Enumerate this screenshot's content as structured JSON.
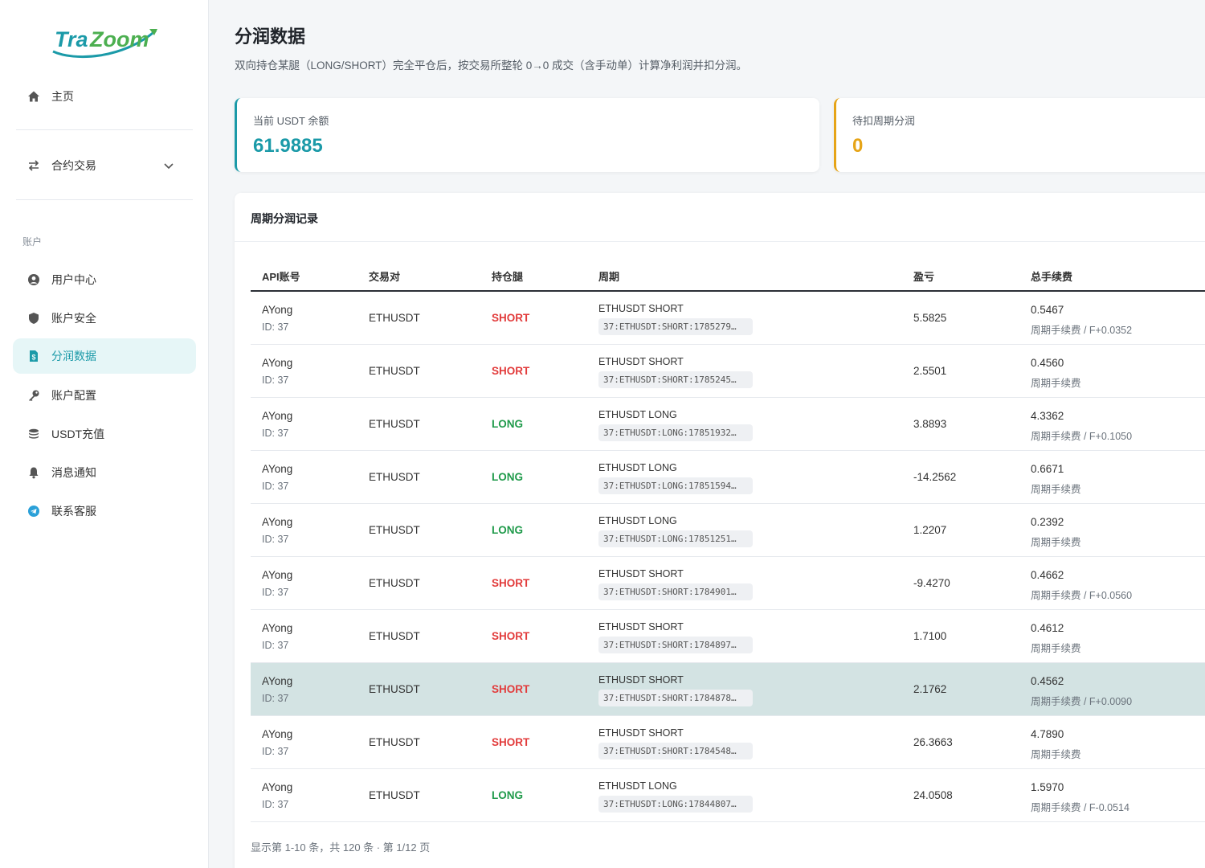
{
  "brand": {
    "logo_text": "TraZoom"
  },
  "sidebar": {
    "home": "主页",
    "contract": "合约交易",
    "section_account": "账户",
    "items": [
      {
        "label": "用户中心",
        "icon": "user-circle-icon"
      },
      {
        "label": "账户安全",
        "icon": "shield-icon"
      },
      {
        "label": "分润数据",
        "icon": "file-dollar-icon"
      },
      {
        "label": "账户配置",
        "icon": "key-icon"
      },
      {
        "label": "USDT充值",
        "icon": "coins-icon"
      },
      {
        "label": "消息通知",
        "icon": "bell-icon"
      },
      {
        "label": "联系客服",
        "icon": "telegram-icon"
      }
    ]
  },
  "page": {
    "title": "分润数据",
    "description": "双向持仓某腿（LONG/SHORT）完全平仓后，按交易所整轮 0→0 成交（含手动单）计算净利润并扣分润。"
  },
  "stats": {
    "balance_label": "当前 USDT 余额",
    "balance_value": "61.9885",
    "pending_label": "待扣周期分润",
    "pending_value": "0"
  },
  "panel": {
    "title": "周期分润记录"
  },
  "table": {
    "headers": {
      "account": "API账号",
      "pair": "交易对",
      "side": "持仓腿",
      "period": "周期",
      "pnl": "盈亏",
      "fee": "总手续费"
    },
    "rows": [
      {
        "name": "AYong",
        "id": "ID: 37",
        "pair": "ETHUSDT",
        "side": "SHORT",
        "period_title": "ETHUSDT SHORT",
        "period_code": "37:ETHUSDT:SHORT:1785279…",
        "pnl": "5.5825",
        "fee": "0.5467",
        "fee_sub": "周期手续费 / F+0.0352"
      },
      {
        "name": "AYong",
        "id": "ID: 37",
        "pair": "ETHUSDT",
        "side": "SHORT",
        "period_title": "ETHUSDT SHORT",
        "period_code": "37:ETHUSDT:SHORT:1785245…",
        "pnl": "2.5501",
        "fee": "0.4560",
        "fee_sub": "周期手续费"
      },
      {
        "name": "AYong",
        "id": "ID: 37",
        "pair": "ETHUSDT",
        "side": "LONG",
        "period_title": "ETHUSDT LONG",
        "period_code": "37:ETHUSDT:LONG:17851932…",
        "pnl": "3.8893",
        "fee": "4.3362",
        "fee_sub": "周期手续费 / F+0.1050"
      },
      {
        "name": "AYong",
        "id": "ID: 37",
        "pair": "ETHUSDT",
        "side": "LONG",
        "period_title": "ETHUSDT LONG",
        "period_code": "37:ETHUSDT:LONG:17851594…",
        "pnl": "-14.2562",
        "fee": "0.6671",
        "fee_sub": "周期手续费"
      },
      {
        "name": "AYong",
        "id": "ID: 37",
        "pair": "ETHUSDT",
        "side": "LONG",
        "period_title": "ETHUSDT LONG",
        "period_code": "37:ETHUSDT:LONG:17851251…",
        "pnl": "1.2207",
        "fee": "0.2392",
        "fee_sub": "周期手续费"
      },
      {
        "name": "AYong",
        "id": "ID: 37",
        "pair": "ETHUSDT",
        "side": "SHORT",
        "period_title": "ETHUSDT SHORT",
        "period_code": "37:ETHUSDT:SHORT:1784901…",
        "pnl": "-9.4270",
        "fee": "0.4662",
        "fee_sub": "周期手续费 / F+0.0560"
      },
      {
        "name": "AYong",
        "id": "ID: 37",
        "pair": "ETHUSDT",
        "side": "SHORT",
        "period_title": "ETHUSDT SHORT",
        "period_code": "37:ETHUSDT:SHORT:1784897…",
        "pnl": "1.7100",
        "fee": "0.4612",
        "fee_sub": "周期手续费"
      },
      {
        "name": "AYong",
        "id": "ID: 37",
        "pair": "ETHUSDT",
        "side": "SHORT",
        "period_title": "ETHUSDT SHORT",
        "period_code": "37:ETHUSDT:SHORT:1784878…",
        "pnl": "2.1762",
        "fee": "0.4562",
        "fee_sub": "周期手续费 / F+0.0090"
      },
      {
        "name": "AYong",
        "id": "ID: 37",
        "pair": "ETHUSDT",
        "side": "SHORT",
        "period_title": "ETHUSDT SHORT",
        "period_code": "37:ETHUSDT:SHORT:1784548…",
        "pnl": "26.3663",
        "fee": "4.7890",
        "fee_sub": "周期手续费"
      },
      {
        "name": "AYong",
        "id": "ID: 37",
        "pair": "ETHUSDT",
        "side": "LONG",
        "period_title": "ETHUSDT LONG",
        "period_code": "37:ETHUSDT:LONG:17844807…",
        "pnl": "24.0508",
        "fee": "1.5970",
        "fee_sub": "周期手续费 / F-0.0514"
      }
    ]
  },
  "pager": {
    "text": "显示第 1-10 条，共 120 条 · 第 1/12 页"
  },
  "colors": {
    "accent": "#1b9aa8",
    "warning": "#e6a417",
    "short": "#e23b3b",
    "long": "#1f9a4a"
  }
}
